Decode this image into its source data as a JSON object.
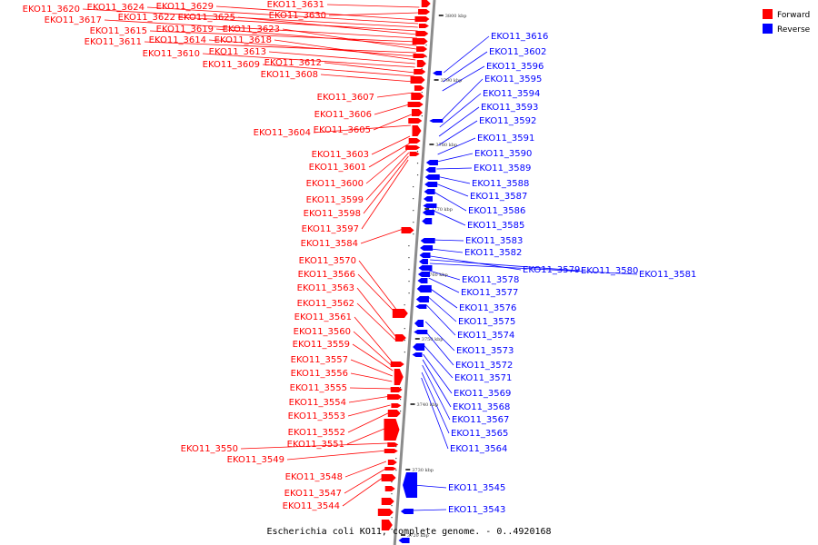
{
  "caption": "Escherichia coli KO11, complete genome. - 0..4920168",
  "legend": [
    {
      "label": "Forward",
      "color": "#ff0000"
    },
    {
      "label": "Reverse",
      "color": "#0000ff"
    }
  ],
  "colors": {
    "forward": "#ff0000",
    "reverse": "#0000ff",
    "axis": "#8c8c8c"
  },
  "scale_ticks": [
    "3800 kbp",
    "3790 kbp",
    "3780 kbp",
    "3770 kbp",
    "3760 kbp",
    "3750 kbp",
    "3740 kbp",
    "3730 kbp",
    "3720 kbp"
  ],
  "forward_genes": [
    "EKO11_3631",
    "EKO11_3630",
    "EKO11_3629",
    "EKO11_3624",
    "EKO11_3620",
    "EKO11_3622",
    "EKO11_3625",
    "EKO11_3617",
    "EKO11_3615",
    "EKO11_3619",
    "EKO11_3623",
    "EKO11_3611",
    "EKO11_3614",
    "EKO11_3618",
    "EKO11_3613",
    "EKO11_3610",
    "EKO11_3612",
    "EKO11_3609",
    "EKO11_3608",
    "EKO11_3607",
    "EKO11_3606",
    "EKO11_3605",
    "EKO11_3604",
    "EKO11_3603",
    "EKO11_3601",
    "EKO11_3600",
    "EKO11_3599",
    "EKO11_3598",
    "EKO11_3597",
    "EKO11_3584",
    "EKO11_3570",
    "EKO11_3566",
    "EKO11_3563",
    "EKO11_3562",
    "EKO11_3561",
    "EKO11_3560",
    "EKO11_3559",
    "EKO11_3557",
    "EKO11_3556",
    "EKO11_3555",
    "EKO11_3554",
    "EKO11_3553",
    "EKO11_3552",
    "EKO11_3551",
    "EKO11_3550",
    "EKO11_3549",
    "EKO11_3548",
    "EKO11_3547",
    "EKO11_3544"
  ],
  "reverse_genes": [
    "EKO11_3616",
    "EKO11_3602",
    "EKO11_3596",
    "EKO11_3595",
    "EKO11_3594",
    "EKO11_3593",
    "EKO11_3592",
    "EKO11_3591",
    "EKO11_3590",
    "EKO11_3589",
    "EKO11_3588",
    "EKO11_3587",
    "EKO11_3586",
    "EKO11_3585",
    "EKO11_3583",
    "EKO11_3582",
    "EKO11_3579",
    "EKO11_3580",
    "EKO11_3581",
    "EKO11_3578",
    "EKO11_3577",
    "EKO11_3576",
    "EKO11_3575",
    "EKO11_3574",
    "EKO11_3573",
    "EKO11_3572",
    "EKO11_3571",
    "EKO11_3569",
    "EKO11_3568",
    "EKO11_3567",
    "EKO11_3565",
    "EKO11_3564",
    "EKO11_3545",
    "EKO11_3543"
  ]
}
